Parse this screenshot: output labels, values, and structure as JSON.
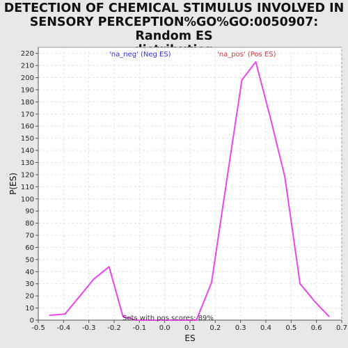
{
  "chart_data": {
    "type": "line",
    "title_lines": [
      "DETECTION OF CHEMICAL STIMULUS INVOLVED IN",
      "SENSORY PERCEPTION%GO%GO:0050907: Random ES",
      "distribution"
    ],
    "xlabel": "ES",
    "ylabel": "P(ES)",
    "xlim": [
      -0.5,
      0.7
    ],
    "ylim": [
      0,
      225
    ],
    "xticks": [
      -0.5,
      -0.4,
      -0.3,
      -0.2,
      -0.1,
      0.0,
      0.1,
      0.2,
      0.3,
      0.4,
      0.5,
      0.6,
      0.7
    ],
    "xtick_labels": [
      "-0.5",
      "-0.4",
      "-0.3",
      "-0.2",
      "-0.1",
      "0.0",
      "0.1",
      "0.2",
      "0.3",
      "0.4",
      "0.5",
      "0.6",
      "0.7"
    ],
    "yticks": [
      0,
      10,
      20,
      30,
      40,
      50,
      60,
      70,
      80,
      90,
      100,
      110,
      120,
      130,
      140,
      150,
      160,
      170,
      180,
      190,
      200,
      210,
      220
    ],
    "grid": true,
    "line_color": "#ee44ee",
    "legend": [
      {
        "label": "'na_neg' (Neg ES)",
        "color": "#3333cc"
      },
      {
        "label": "'na_pos' (Pos ES)",
        "color": "#dd3333"
      }
    ],
    "annotation": "Sets with pos scores: 89%",
    "series": [
      {
        "x": [
          -0.455,
          -0.395,
          -0.335,
          -0.28,
          -0.22,
          -0.165,
          -0.11,
          -0.05,
          0.0,
          0.06,
          0.125,
          0.185,
          0.245,
          0.305,
          0.36,
          0.42,
          0.475,
          0.535,
          0.595,
          0.65
        ],
        "y": [
          4,
          5,
          20,
          34,
          44,
          3,
          0,
          0,
          0,
          0,
          0,
          31,
          115,
          198,
          213,
          165,
          118,
          30,
          15,
          3
        ]
      }
    ]
  }
}
